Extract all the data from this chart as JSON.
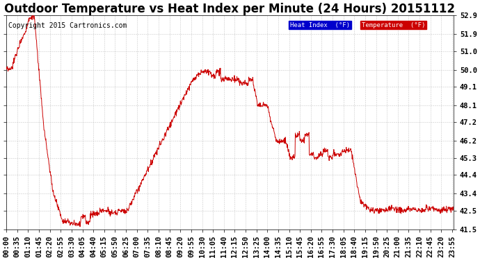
{
  "title": "Outdoor Temperature vs Heat Index per Minute (24 Hours) 20151112",
  "copyright": "Copyright 2015 Cartronics.com",
  "legend_labels": [
    "Heat Index  (°F)",
    "Temperature  (°F)"
  ],
  "legend_bg_colors": [
    "#0000cc",
    "#cc0000"
  ],
  "line_color": "#cc0000",
  "background_color": "#ffffff",
  "plot_bg_color": "#ffffff",
  "grid_color": "#bbbbbb",
  "ylim": [
    41.5,
    52.9
  ],
  "yticks": [
    41.5,
    42.5,
    43.4,
    44.4,
    45.3,
    46.2,
    47.2,
    48.1,
    49.1,
    50.0,
    51.0,
    51.9,
    52.9
  ],
  "title_fontsize": 12,
  "copyright_fontsize": 7,
  "tick_fontsize": 7.5,
  "num_minutes": 1440,
  "x_tick_interval_min": 35,
  "figsize": [
    6.9,
    3.75
  ],
  "dpi": 100
}
